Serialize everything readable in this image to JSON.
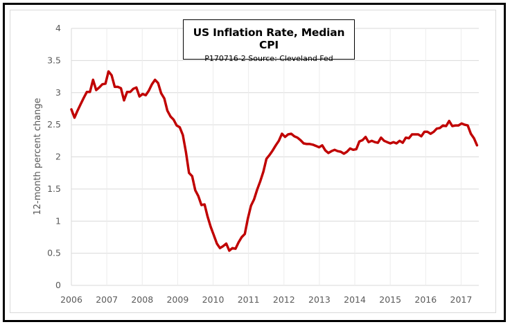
{
  "chart_data": {
    "type": "line",
    "title": "US Inflation Rate, Median CPI",
    "subtitle": "P170716-2 Source: Cleveland Fed",
    "xlabel": "",
    "ylabel": "12-month percent change",
    "xlim": [
      2006,
      2017.5
    ],
    "ylim": [
      0,
      4
    ],
    "grid": true,
    "legend": "none",
    "x_ticks": [
      "2006",
      "2007",
      "2008",
      "2009",
      "2010",
      "2011",
      "2012",
      "2013",
      "2014",
      "2015",
      "2016",
      "2017"
    ],
    "y_ticks": [
      "0",
      "0.5",
      "1",
      "1.5",
      "2",
      "2.5",
      "3",
      "3.5",
      "4"
    ],
    "series": [
      {
        "name": "Median CPI",
        "color": "#c00000",
        "x_range": [
          2006.0,
          2017.45
        ],
        "values": [
          2.74,
          2.61,
          2.72,
          2.82,
          2.92,
          3.01,
          3.01,
          3.2,
          3.04,
          3.08,
          3.13,
          3.14,
          3.33,
          3.27,
          3.09,
          3.09,
          3.07,
          2.88,
          3.01,
          3.01,
          3.06,
          3.08,
          2.94,
          2.98,
          2.96,
          3.03,
          3.13,
          3.2,
          3.15,
          2.99,
          2.91,
          2.72,
          2.63,
          2.58,
          2.49,
          2.46,
          2.34,
          2.07,
          1.75,
          1.7,
          1.48,
          1.39,
          1.25,
          1.26,
          1.07,
          0.91,
          0.78,
          0.65,
          0.58,
          0.61,
          0.65,
          0.54,
          0.58,
          0.57,
          0.67,
          0.75,
          0.8,
          1.04,
          1.24,
          1.34,
          1.49,
          1.62,
          1.77,
          1.97,
          2.03,
          2.1,
          2.18,
          2.25,
          2.36,
          2.31,
          2.35,
          2.36,
          2.32,
          2.3,
          2.26,
          2.21,
          2.2,
          2.2,
          2.19,
          2.17,
          2.15,
          2.18,
          2.1,
          2.06,
          2.09,
          2.11,
          2.09,
          2.08,
          2.05,
          2.08,
          2.13,
          2.11,
          2.12,
          2.24,
          2.26,
          2.31,
          2.23,
          2.25,
          2.23,
          2.22,
          2.3,
          2.25,
          2.23,
          2.21,
          2.23,
          2.21,
          2.25,
          2.22,
          2.3,
          2.29,
          2.35,
          2.35,
          2.35,
          2.32,
          2.39,
          2.39,
          2.36,
          2.39,
          2.44,
          2.45,
          2.49,
          2.48,
          2.56,
          2.48,
          2.49,
          2.49,
          2.52,
          2.5,
          2.49,
          2.36,
          2.29,
          2.18
        ]
      }
    ]
  }
}
